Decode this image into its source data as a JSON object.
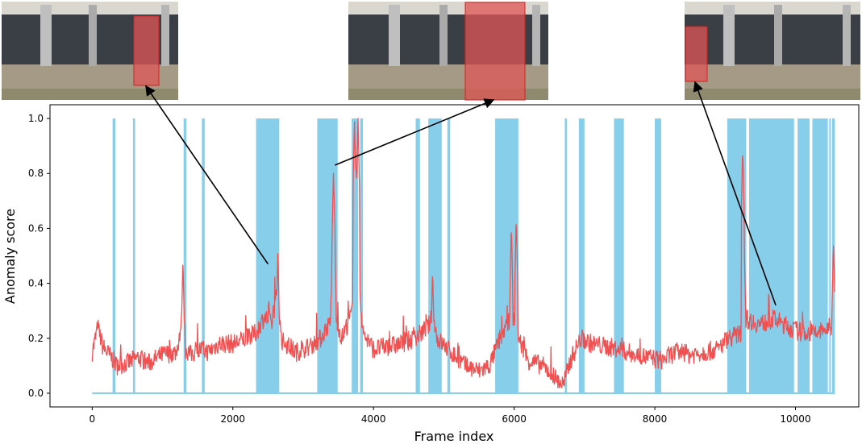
{
  "chart_data": {
    "type": "line",
    "title": "",
    "xlabel": "Frame index",
    "ylabel": "Anomaly score",
    "xlim": [
      -600,
      10900
    ],
    "ylim": [
      -0.05,
      1.05
    ],
    "xticks": [
      0,
      2000,
      4000,
      6000,
      8000,
      10000
    ],
    "yticks": [
      0.0,
      0.2,
      0.4,
      0.6,
      0.8,
      1.0
    ],
    "ground_truth_color": "#87ceeb",
    "score_color": "#f05050",
    "ground_truth_segments": [
      [
        290,
        330
      ],
      [
        580,
        610
      ],
      [
        1300,
        1340
      ],
      [
        1560,
        1600
      ],
      [
        2330,
        2660
      ],
      [
        3200,
        3490
      ],
      [
        3690,
        3780
      ],
      [
        3810,
        3850
      ],
      [
        4600,
        4660
      ],
      [
        4780,
        4970
      ],
      [
        5050,
        5090
      ],
      [
        5730,
        6060
      ],
      [
        6720,
        6750
      ],
      [
        6920,
        7000
      ],
      [
        7420,
        7560
      ],
      [
        8000,
        8090
      ],
      [
        9030,
        9300
      ],
      [
        9340,
        9980
      ],
      [
        10030,
        10200
      ],
      [
        10240,
        10460
      ],
      [
        10480,
        10500
      ],
      [
        10520,
        10560
      ]
    ],
    "score_keypoints": [
      [
        0,
        0.15
      ],
      [
        80,
        0.24
      ],
      [
        150,
        0.17
      ],
      [
        300,
        0.12
      ],
      [
        350,
        0.1
      ],
      [
        500,
        0.11
      ],
      [
        650,
        0.13
      ],
      [
        800,
        0.11
      ],
      [
        1000,
        0.14
      ],
      [
        1200,
        0.15
      ],
      [
        1300,
        0.3
      ],
      [
        1330,
        0.16
      ],
      [
        1400,
        0.14
      ],
      [
        1550,
        0.16
      ],
      [
        1650,
        0.15
      ],
      [
        1800,
        0.18
      ],
      [
        2000,
        0.18
      ],
      [
        2200,
        0.2
      ],
      [
        2330,
        0.22
      ],
      [
        2450,
        0.28
      ],
      [
        2550,
        0.25
      ],
      [
        2620,
        0.35
      ],
      [
        2700,
        0.19
      ],
      [
        2900,
        0.15
      ],
      [
        3100,
        0.17
      ],
      [
        3250,
        0.2
      ],
      [
        3380,
        0.26
      ],
      [
        3420,
        0.4
      ],
      [
        3440,
        0.78
      ],
      [
        3470,
        0.27
      ],
      [
        3550,
        0.2
      ],
      [
        3700,
        0.3
      ],
      [
        3750,
        0.85
      ],
      [
        3800,
        0.4
      ],
      [
        3850,
        0.22
      ],
      [
        4000,
        0.16
      ],
      [
        4200,
        0.17
      ],
      [
        4400,
        0.18
      ],
      [
        4600,
        0.2
      ],
      [
        4800,
        0.25
      ],
      [
        4850,
        0.3
      ],
      [
        4900,
        0.2
      ],
      [
        5100,
        0.15
      ],
      [
        5300,
        0.1
      ],
      [
        5500,
        0.08
      ],
      [
        5650,
        0.1
      ],
      [
        5800,
        0.2
      ],
      [
        5900,
        0.25
      ],
      [
        6000,
        0.28
      ],
      [
        6060,
        0.2
      ],
      [
        6200,
        0.12
      ],
      [
        6400,
        0.1
      ],
      [
        6500,
        0.08
      ],
      [
        6600,
        0.05
      ],
      [
        6700,
        0.03
      ],
      [
        6800,
        0.12
      ],
      [
        6950,
        0.2
      ],
      [
        7100,
        0.18
      ],
      [
        7300,
        0.17
      ],
      [
        7500,
        0.16
      ],
      [
        7700,
        0.14
      ],
      [
        7900,
        0.13
      ],
      [
        8100,
        0.12
      ],
      [
        8300,
        0.15
      ],
      [
        8500,
        0.14
      ],
      [
        8700,
        0.15
      ],
      [
        8900,
        0.16
      ],
      [
        9030,
        0.2
      ],
      [
        9150,
        0.21
      ],
      [
        9230,
        0.22
      ],
      [
        9300,
        0.27
      ],
      [
        9500,
        0.25
      ],
      [
        9700,
        0.27
      ],
      [
        9900,
        0.24
      ],
      [
        10100,
        0.22
      ],
      [
        10300,
        0.22
      ],
      [
        10500,
        0.24
      ],
      [
        10560,
        0.15
      ]
    ],
    "score_spikes": [
      [
        80,
        0.27
      ],
      [
        1290,
        0.49
      ],
      [
        2510,
        0.37
      ],
      [
        2640,
        0.52
      ],
      [
        3430,
        0.8
      ],
      [
        3730,
        1.0
      ],
      [
        3780,
        1.0
      ],
      [
        4840,
        0.46
      ],
      [
        5960,
        0.62
      ],
      [
        6030,
        0.65
      ],
      [
        9250,
        0.9
      ],
      [
        9270,
        0.55
      ],
      [
        10540,
        0.56
      ]
    ],
    "annotation_arrows": [
      {
        "from": [
          2500,
          0.47
        ],
        "to_thumbnail": 0
      },
      {
        "from": [
          3450,
          0.83
        ],
        "to_thumbnail": 1
      },
      {
        "from": [
          9720,
          0.32
        ],
        "to_thumbnail": 2
      }
    ]
  },
  "thumbnails": [
    {
      "name": "frame-thumbnail-left"
    },
    {
      "name": "frame-thumbnail-middle"
    },
    {
      "name": "frame-thumbnail-right"
    }
  ]
}
